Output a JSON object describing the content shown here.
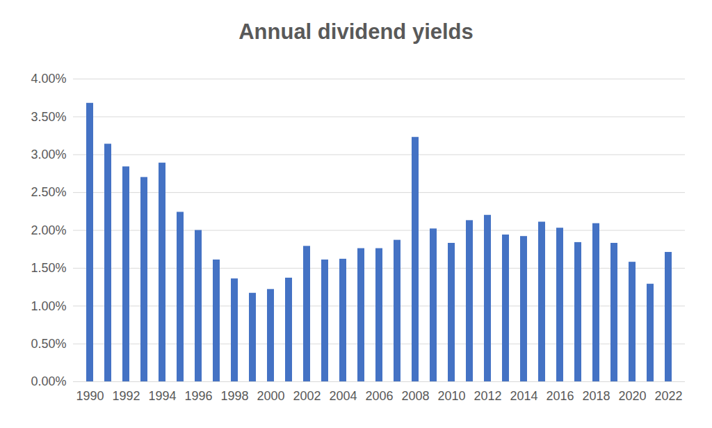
{
  "chart_data": {
    "type": "bar",
    "title": "Annual dividend yields",
    "categories": [
      "1990",
      null,
      "1992",
      null,
      "1994",
      null,
      "1996",
      null,
      "1998",
      null,
      "2000",
      null,
      "2002",
      null,
      "2004",
      null,
      "2006",
      null,
      "2008",
      null,
      "2010",
      null,
      "2012",
      null,
      "2014",
      null,
      "2016",
      null,
      "2018",
      null,
      "2020",
      null,
      "2022"
    ],
    "values": [
      3.68,
      3.14,
      2.84,
      2.7,
      2.89,
      2.24,
      2.0,
      1.61,
      1.36,
      1.17,
      1.22,
      1.37,
      1.79,
      1.61,
      1.62,
      1.76,
      1.76,
      1.87,
      3.23,
      2.02,
      1.83,
      2.13,
      2.2,
      1.94,
      1.92,
      2.11,
      2.03,
      1.84,
      2.09,
      1.83,
      1.58,
      1.29,
      1.71
    ],
    "color": "#4472c4",
    "ylim": [
      0,
      4
    ],
    "yticks": [
      {
        "value": 0,
        "label": "0.00%"
      },
      {
        "value": 0.5,
        "label": "0.50%"
      },
      {
        "value": 1,
        "label": "1.00%"
      },
      {
        "value": 1.5,
        "label": "1.50%"
      },
      {
        "value": 2,
        "label": "2.00%"
      },
      {
        "value": 2.5,
        "label": "2.50%"
      },
      {
        "value": 3,
        "label": "3.00%"
      },
      {
        "value": 3.5,
        "label": "3.50%"
      },
      {
        "value": 4,
        "label": "4.00%"
      }
    ],
    "grid": true
  }
}
